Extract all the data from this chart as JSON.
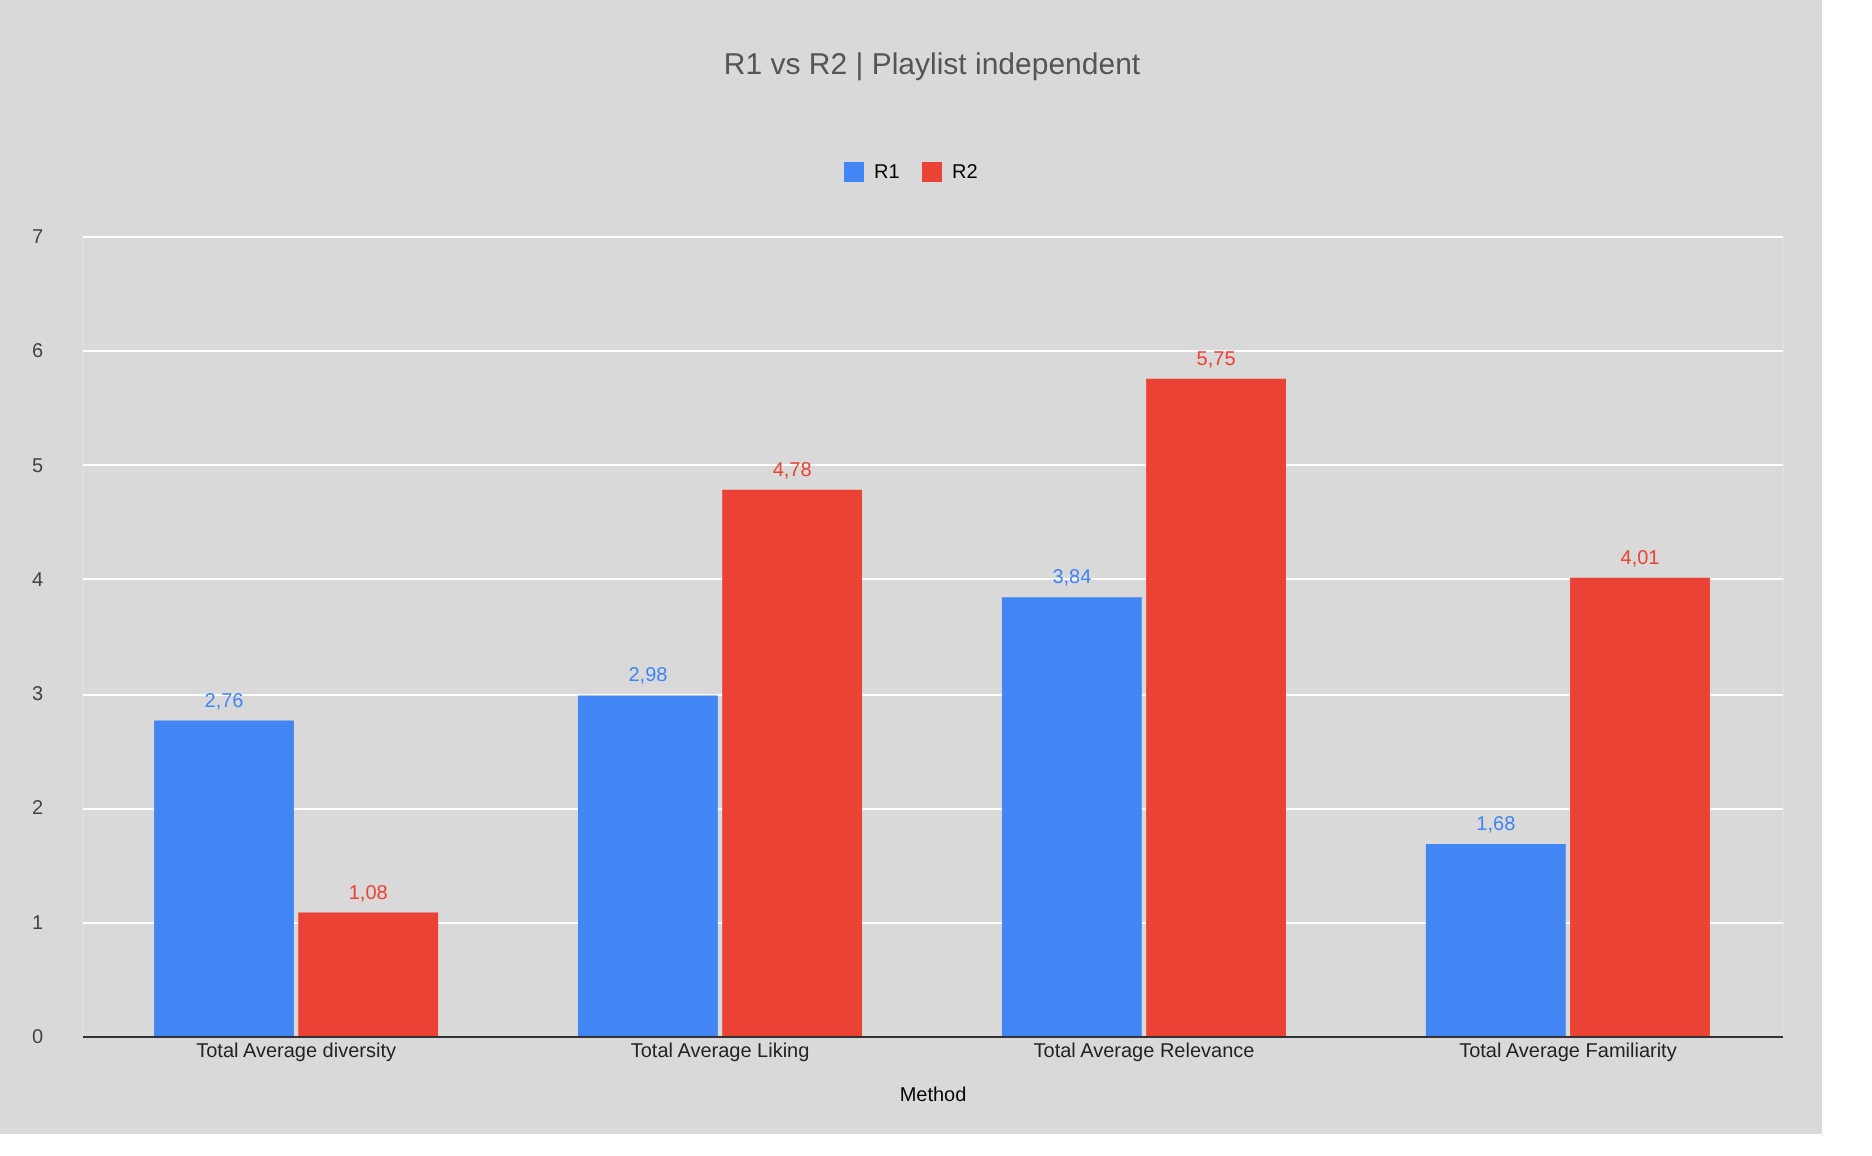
{
  "chart_data": {
    "type": "bar",
    "title": "R1 vs R2 | Playlist independent",
    "xlabel": "Method",
    "categories": [
      "Total Average diversity",
      "Total Average Liking",
      "Total Average Relevance",
      "Total Average Familiarity"
    ],
    "series": [
      {
        "name": "R1",
        "color": "#4285f4",
        "values": [
          2.76,
          2.98,
          3.84,
          1.68
        ],
        "value_labels": [
          "2,76",
          "2,98",
          "3,84",
          "1,68"
        ]
      },
      {
        "name": "R2",
        "color": "#ea4335",
        "values": [
          1.08,
          4.78,
          5.75,
          4.01
        ],
        "value_labels": [
          "1,08",
          "4,78",
          "5,75",
          "4,01"
        ]
      }
    ],
    "ylim": [
      0,
      7
    ],
    "yticks": [
      0,
      1,
      2,
      3,
      4,
      5,
      6,
      7
    ],
    "grid": "y",
    "legend": "top"
  }
}
